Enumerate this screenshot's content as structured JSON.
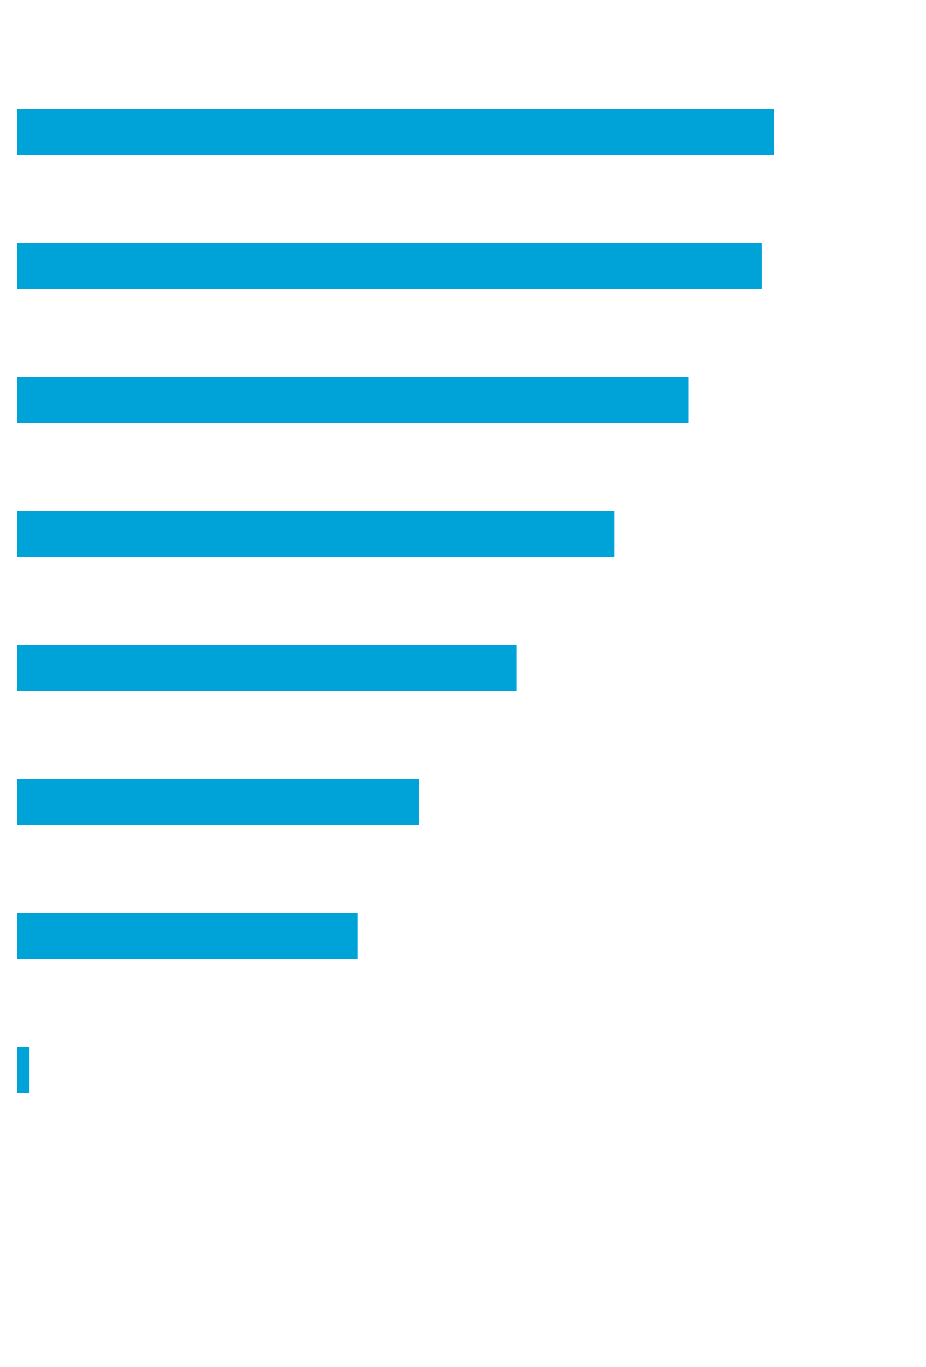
{
  "chart_data": {
    "type": "bar",
    "orientation": "horizontal",
    "title": "",
    "xlabel": "",
    "ylabel": "",
    "grid": false,
    "legend": false,
    "xlim": [
      0,
      100
    ],
    "bar_color": "#00a3d7",
    "values": [
      100,
      98.4,
      88.7,
      78.9,
      66.0,
      53.1,
      45.0,
      1.6
    ]
  }
}
